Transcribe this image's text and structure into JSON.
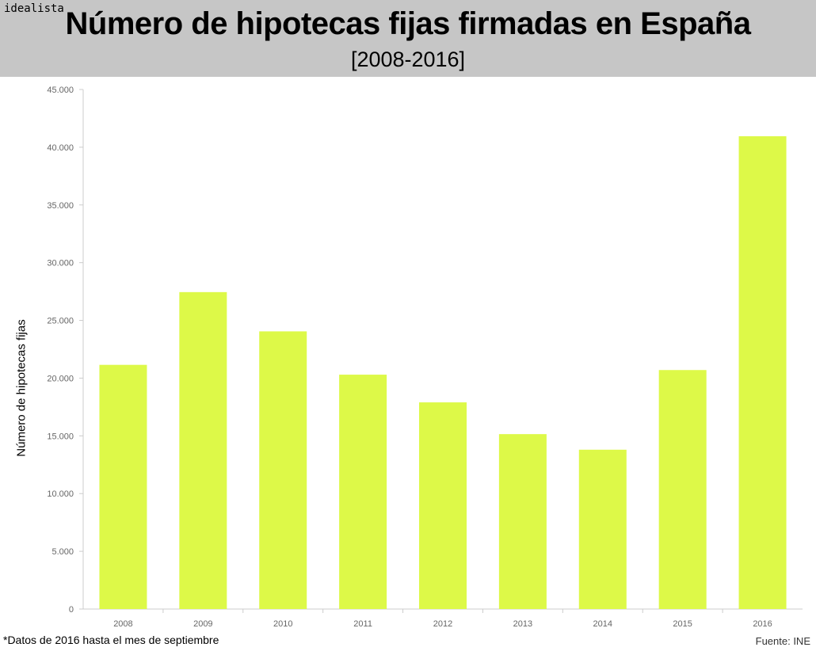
{
  "logo": "idealista",
  "chart_data": {
    "type": "bar",
    "title": "Número de hipotecas fijas firmadas en España",
    "subtitle": "[2008-2016]",
    "xlabel": "",
    "ylabel": "Número de hipotecas fijas",
    "categories": [
      "2008",
      "2009",
      "2010",
      "2011",
      "2012",
      "2013",
      "2014",
      "2015",
      "2016"
    ],
    "values": [
      21150,
      27450,
      24050,
      20300,
      17900,
      15150,
      13800,
      20700,
      40950
    ],
    "ylim": [
      0,
      45000
    ],
    "yticks": [
      0,
      5000,
      10000,
      15000,
      20000,
      25000,
      30000,
      35000,
      40000,
      45000
    ],
    "ytick_labels": [
      "0",
      "5.000",
      "10.000",
      "15.000",
      "20.000",
      "25.000",
      "30.000",
      "35.000",
      "40.000",
      "45.000"
    ],
    "bar_color": "#ddf948",
    "grid": false,
    "note": "*Datos de 2016 hasta el mes de septiembre",
    "source": "Fuente: INE"
  }
}
